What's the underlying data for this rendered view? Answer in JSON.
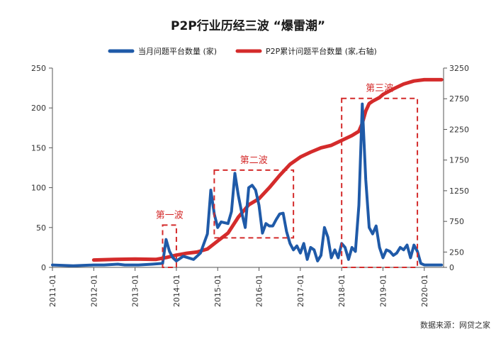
{
  "chart_data": {
    "type": "line",
    "title": "P2P行业历经三波 “爆雷潮”",
    "source": "数据来源：网贷之家",
    "x_ticks": [
      "2011-01",
      "2012-01",
      "2013-01",
      "2014-01",
      "2015-01",
      "2016-01",
      "2017-01",
      "2018-01",
      "2019-01",
      "2020-01"
    ],
    "y_left": {
      "ticks": [
        0,
        50,
        100,
        150,
        200,
        250
      ],
      "ylim": [
        0,
        250
      ]
    },
    "y_right": {
      "ticks": [
        0,
        250,
        750,
        1250,
        1750,
        2250,
        2750,
        3250
      ],
      "ylim": [
        0,
        3250
      ]
    },
    "grid": false,
    "legend_position": "top",
    "series": [
      {
        "name": "当月问题平台数量 (家)",
        "axis": "left",
        "color": "#1f5aa8",
        "x": [
          "2011-01",
          "2011-07",
          "2012-01",
          "2012-04",
          "2012-08",
          "2012-10",
          "2013-02",
          "2013-06",
          "2013-09",
          "2013-10",
          "2013-11",
          "2013-12",
          "2014-01",
          "2014-03",
          "2014-06",
          "2014-08",
          "2014-09",
          "2014-10",
          "2014-11",
          "2014-12",
          "2015-01",
          "2015-02",
          "2015-04",
          "2015-05",
          "2015-06",
          "2015-07",
          "2015-08",
          "2015-09",
          "2015-10",
          "2015-11",
          "2015-12",
          "2016-01",
          "2016-02",
          "2016-03",
          "2016-04",
          "2016-05",
          "2016-06",
          "2016-07",
          "2016-08",
          "2016-09",
          "2016-10",
          "2016-11",
          "2016-12",
          "2017-01",
          "2017-02",
          "2017-03",
          "2017-04",
          "2017-05",
          "2017-06",
          "2017-07",
          "2017-08",
          "2017-09",
          "2017-10",
          "2017-11",
          "2017-12",
          "2018-01",
          "2018-02",
          "2018-03",
          "2018-04",
          "2018-05",
          "2018-06",
          "2018-07",
          "2018-08",
          "2018-09",
          "2018-10",
          "2018-11",
          "2018-12",
          "2019-01",
          "2019-02",
          "2019-03",
          "2019-04",
          "2019-05",
          "2019-06",
          "2019-07",
          "2019-08",
          "2019-09",
          "2019-10",
          "2019-11",
          "2019-12",
          "2020-01",
          "2020-06"
        ],
        "values": [
          3,
          2,
          3,
          3,
          4,
          3,
          3,
          4,
          5,
          35,
          20,
          12,
          8,
          14,
          10,
          18,
          30,
          42,
          97,
          67,
          50,
          57,
          55,
          70,
          118,
          90,
          68,
          50,
          100,
          103,
          97,
          78,
          43,
          55,
          52,
          52,
          60,
          67,
          68,
          45,
          30,
          22,
          27,
          18,
          30,
          10,
          25,
          22,
          8,
          15,
          50,
          38,
          12,
          22,
          12,
          30,
          25,
          10,
          25,
          20,
          78,
          205,
          110,
          50,
          42,
          52,
          25,
          12,
          22,
          20,
          15,
          18,
          25,
          22,
          28,
          12,
          28,
          20,
          5,
          3,
          3
        ]
      },
      {
        "name": "P2P累计问题平台数量 (家,右轴)",
        "axis": "right",
        "color": "#d42b2b",
        "x": [
          "2012-01",
          "2012-07",
          "2013-01",
          "2013-07",
          "2013-10",
          "2014-01",
          "2014-04",
          "2014-07",
          "2014-10",
          "2015-01",
          "2015-04",
          "2015-07",
          "2015-10",
          "2016-01",
          "2016-04",
          "2016-07",
          "2016-10",
          "2017-01",
          "2017-04",
          "2017-07",
          "2017-10",
          "2018-01",
          "2018-04",
          "2018-06",
          "2018-07",
          "2018-08",
          "2018-09",
          "2018-10",
          "2018-11",
          "2018-12",
          "2019-01",
          "2019-04",
          "2019-07",
          "2019-10",
          "2020-01",
          "2020-06"
        ],
        "values": [
          120,
          130,
          135,
          130,
          160,
          200,
          230,
          250,
          300,
          430,
          560,
          820,
          1020,
          1120,
          1300,
          1500,
          1680,
          1800,
          1880,
          1950,
          1990,
          2070,
          2150,
          2220,
          2350,
          2550,
          2670,
          2710,
          2740,
          2770,
          2820,
          2910,
          2990,
          3040,
          3060,
          3060
        ]
      }
    ],
    "annotations": [
      {
        "label": "第一波",
        "x_range": [
          "2013-09",
          "2014-01"
        ],
        "y_range": [
          0,
          53
        ]
      },
      {
        "label": "第二波",
        "x_range": [
          "2014-12",
          "2016-11"
        ],
        "y_range": [
          37,
          122
        ]
      },
      {
        "label": "第三波",
        "x_range": [
          "2018-01",
          "2019-11"
        ],
        "y_range": [
          0,
          212
        ]
      }
    ]
  }
}
